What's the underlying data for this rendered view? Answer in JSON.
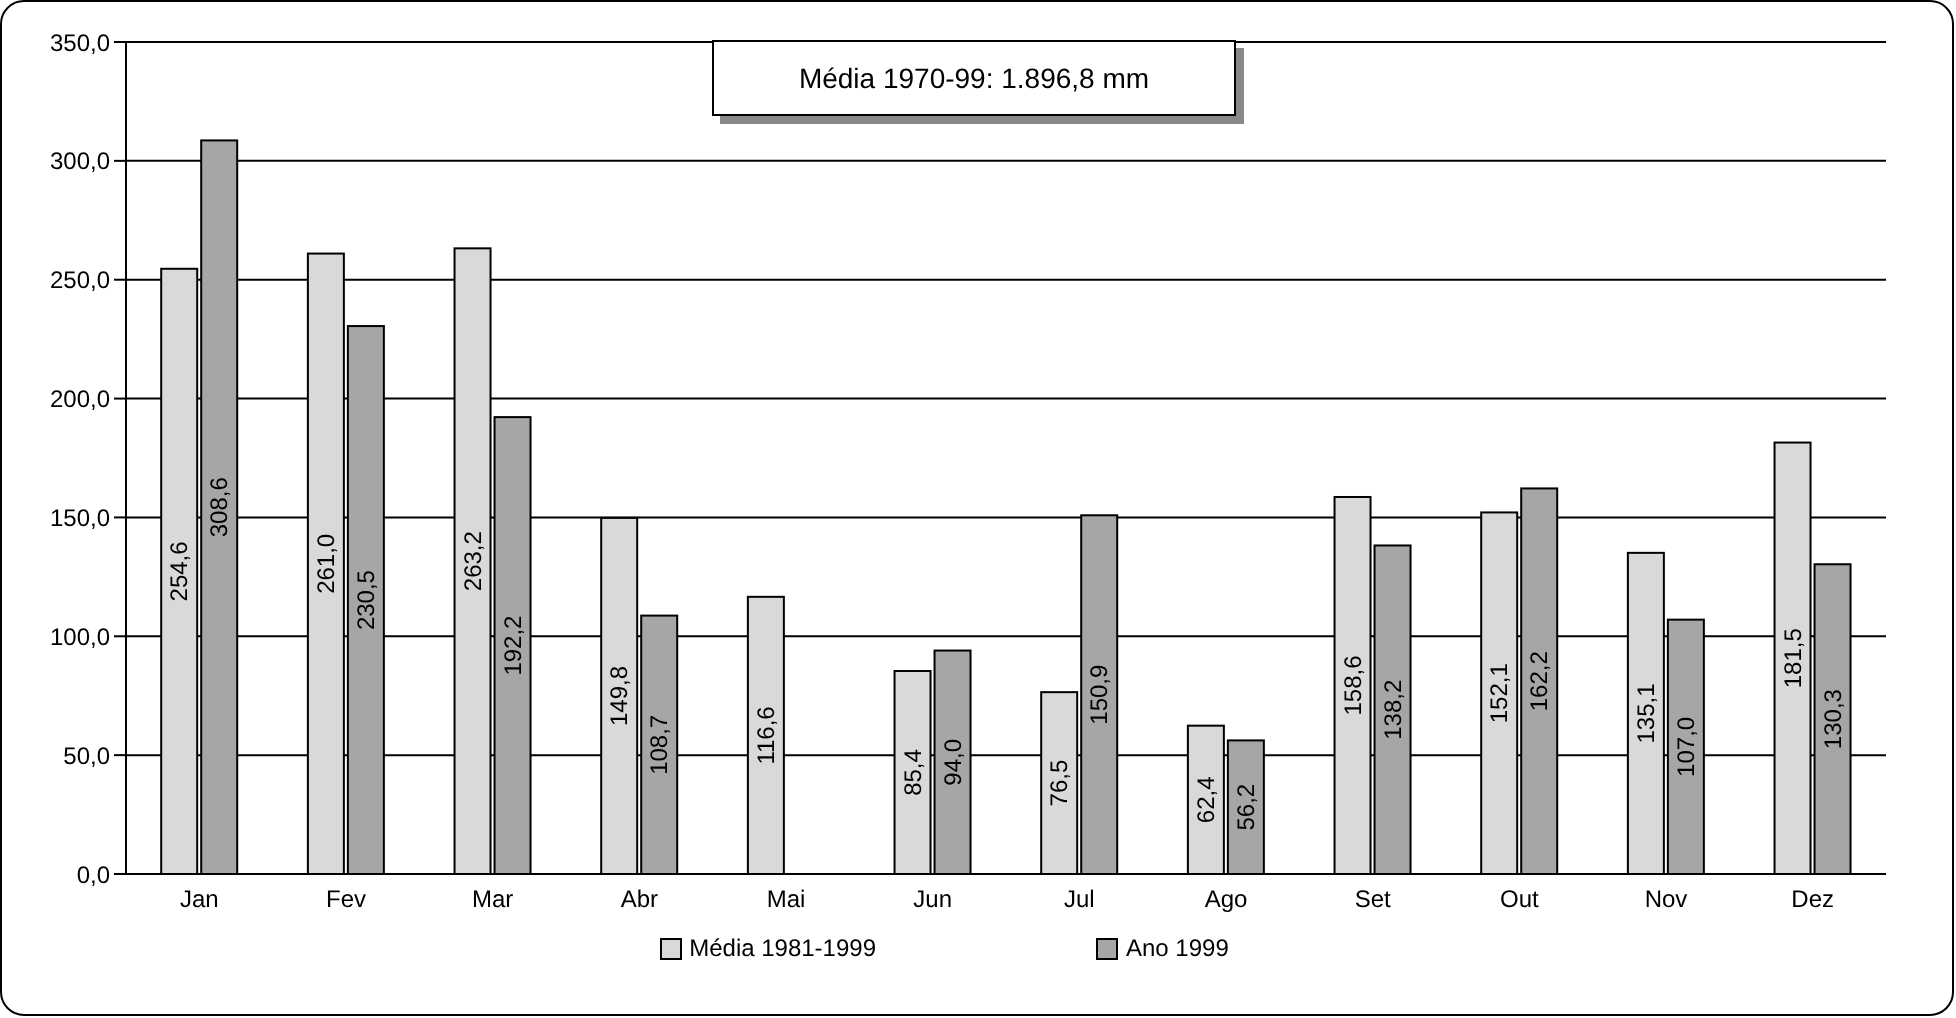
{
  "chart_data": {
    "type": "bar",
    "categories": [
      "Jan",
      "Fev",
      "Mar",
      "Abr",
      "Mai",
      "Jun",
      "Jul",
      "Ago",
      "Set",
      "Out",
      "Nov",
      "Dez"
    ],
    "series": [
      {
        "name": "Média 1981-1999",
        "color": "#d9d9d9",
        "values": [
          254.6,
          261.0,
          263.2,
          149.8,
          116.6,
          85.4,
          76.5,
          62.4,
          158.6,
          152.1,
          135.1,
          181.5
        ],
        "value_labels": [
          "254,6",
          "261,0",
          "263,2",
          "149,8",
          "116,6",
          "85,4",
          "76,5",
          "62,4",
          "158,6",
          "152,1",
          "135,1",
          "181,5"
        ]
      },
      {
        "name": "Ano 1999",
        "color": "#a6a6a6",
        "values": [
          308.6,
          230.5,
          192.2,
          108.7,
          null,
          94.0,
          150.9,
          56.2,
          138.2,
          162.2,
          107.0,
          130.3
        ],
        "value_labels": [
          "308,6",
          "230,5",
          "192,2",
          "108,7",
          null,
          "94,0",
          "150,9",
          "56,2",
          "138,2",
          "162,2",
          "107,0",
          "130,3"
        ]
      }
    ],
    "ylim": [
      0,
      350
    ],
    "yticks": [
      {
        "value": 0,
        "label": "0,0"
      },
      {
        "value": 50,
        "label": "50,0"
      },
      {
        "value": 100,
        "label": "100,0"
      },
      {
        "value": 150,
        "label": "150,0"
      },
      {
        "value": 200,
        "label": "200,0"
      },
      {
        "value": 250,
        "label": "250,0"
      },
      {
        "value": 300,
        "label": "300,0"
      },
      {
        "value": 350,
        "label": "350,0"
      }
    ],
    "grid": "y",
    "legend": "bottom",
    "annotations": [
      "Média 1970-99: 1.896,8 mm"
    ]
  }
}
